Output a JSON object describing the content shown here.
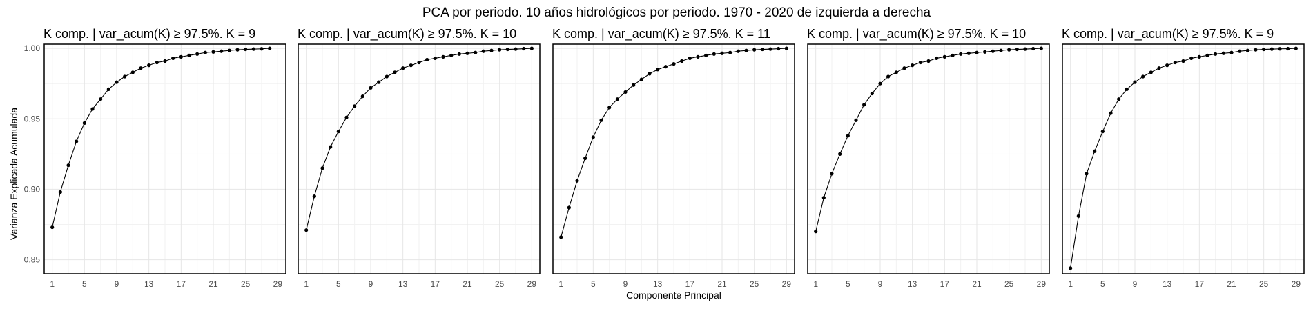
{
  "chart_data": {
    "title": "PCA por periodo. 10 años hidrológicos por periodo. 1970 - 2020 de izquierda a derecha",
    "xlabel": "Componente Principal",
    "ylabel": "Varianza Explicada Acumulada",
    "type": "line",
    "x_ticks": [
      1,
      5,
      9,
      13,
      17,
      21,
      25,
      29
    ],
    "y_ticks": [
      "0.85",
      "0.90",
      "0.95",
      "1.00"
    ],
    "ylim": [
      0.84,
      1.003
    ],
    "xlim": [
      0,
      30
    ],
    "grid": true,
    "panels": [
      {
        "title": "K comp. | var_acum(K) ≥ 97.5%. K =  9",
        "x": [
          1,
          2,
          3,
          4,
          5,
          6,
          7,
          8,
          9,
          10,
          11,
          12,
          13,
          14,
          15,
          16,
          17,
          18,
          19,
          20,
          21,
          22,
          23,
          24,
          25,
          26,
          27,
          28
        ],
        "values": [
          0.873,
          0.898,
          0.917,
          0.934,
          0.947,
          0.957,
          0.964,
          0.971,
          0.976,
          0.98,
          0.983,
          0.986,
          0.988,
          0.99,
          0.991,
          0.993,
          0.994,
          0.995,
          0.996,
          0.997,
          0.9975,
          0.998,
          0.9985,
          0.999,
          0.9993,
          0.9995,
          0.9997,
          1.0
        ]
      },
      {
        "title": "K comp. | var_acum(K) ≥ 97.5%. K =  10",
        "x": [
          1,
          2,
          3,
          4,
          5,
          6,
          7,
          8,
          9,
          10,
          11,
          12,
          13,
          14,
          15,
          16,
          17,
          18,
          19,
          20,
          21,
          22,
          23,
          24,
          25,
          26,
          27,
          28,
          29
        ],
        "values": [
          0.871,
          0.895,
          0.915,
          0.93,
          0.941,
          0.951,
          0.959,
          0.966,
          0.972,
          0.976,
          0.98,
          0.983,
          0.986,
          0.988,
          0.99,
          0.992,
          0.993,
          0.994,
          0.995,
          0.996,
          0.9965,
          0.997,
          0.998,
          0.9985,
          0.999,
          0.9993,
          0.9995,
          0.9998,
          1.0
        ]
      },
      {
        "title": "K comp. | var_acum(K) ≥ 97.5%. K =  11",
        "x": [
          1,
          2,
          3,
          4,
          5,
          6,
          7,
          8,
          9,
          10,
          11,
          12,
          13,
          14,
          15,
          16,
          17,
          18,
          19,
          20,
          21,
          22,
          23,
          24,
          25,
          26,
          27,
          28,
          29
        ],
        "values": [
          0.866,
          0.887,
          0.906,
          0.922,
          0.937,
          0.949,
          0.958,
          0.964,
          0.969,
          0.974,
          0.978,
          0.982,
          0.985,
          0.987,
          0.989,
          0.991,
          0.993,
          0.994,
          0.995,
          0.996,
          0.9965,
          0.997,
          0.998,
          0.9985,
          0.999,
          0.9993,
          0.9995,
          0.9998,
          1.0
        ]
      },
      {
        "title": "K comp. | var_acum(K) ≥ 97.5%. K =  10",
        "x": [
          1,
          2,
          3,
          4,
          5,
          6,
          7,
          8,
          9,
          10,
          11,
          12,
          13,
          14,
          15,
          16,
          17,
          18,
          19,
          20,
          21,
          22,
          23,
          24,
          25,
          26,
          27,
          28,
          29
        ],
        "values": [
          0.87,
          0.894,
          0.911,
          0.925,
          0.938,
          0.949,
          0.96,
          0.968,
          0.975,
          0.98,
          0.983,
          0.986,
          0.988,
          0.99,
          0.991,
          0.993,
          0.994,
          0.995,
          0.996,
          0.9965,
          0.997,
          0.9975,
          0.998,
          0.9985,
          0.999,
          0.9993,
          0.9995,
          0.9998,
          1.0
        ]
      },
      {
        "title": "K comp. | var_acum(K) ≥ 97.5%. K =  9",
        "x": [
          1,
          2,
          3,
          4,
          5,
          6,
          7,
          8,
          9,
          10,
          11,
          12,
          13,
          14,
          15,
          16,
          17,
          18,
          19,
          20,
          21,
          22,
          23,
          24,
          25,
          26,
          27,
          28,
          29
        ],
        "values": [
          0.844,
          0.881,
          0.911,
          0.927,
          0.941,
          0.954,
          0.964,
          0.971,
          0.976,
          0.98,
          0.983,
          0.986,
          0.988,
          0.99,
          0.991,
          0.993,
          0.994,
          0.995,
          0.996,
          0.9965,
          0.997,
          0.998,
          0.9985,
          0.999,
          0.9993,
          0.9995,
          0.9997,
          0.9998,
          1.0
        ]
      }
    ]
  }
}
